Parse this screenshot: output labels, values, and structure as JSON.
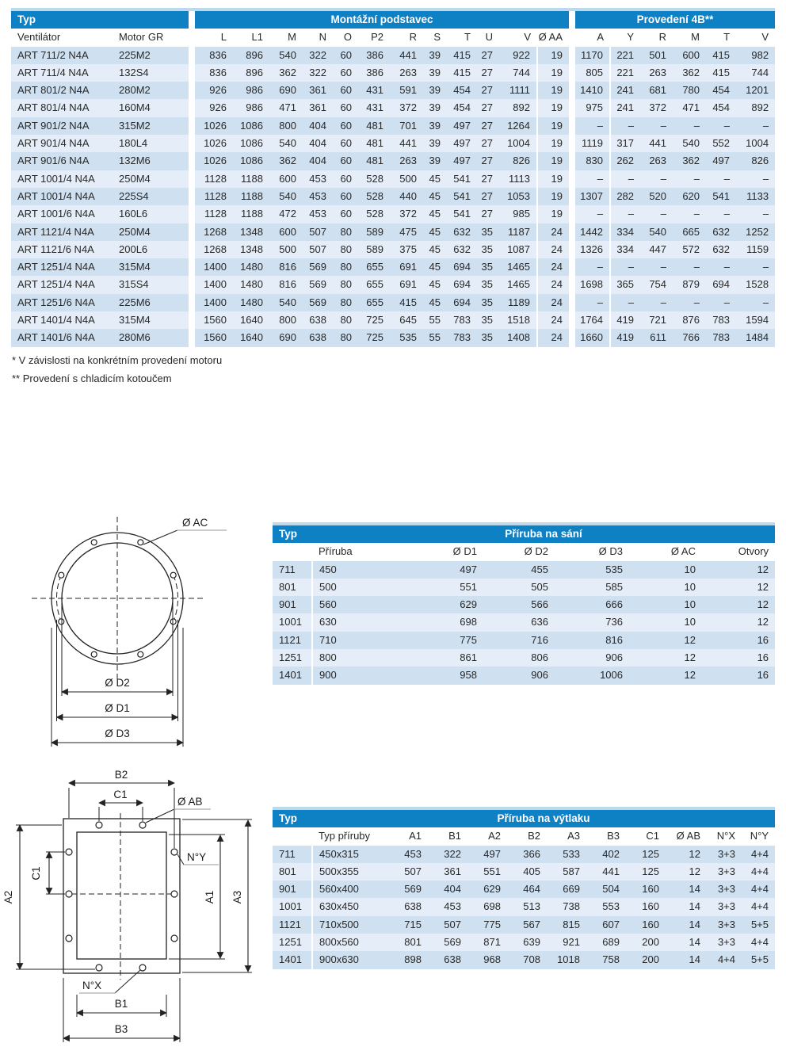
{
  "colors": {
    "header_blue": "#0e80c4",
    "row_dark": "#cfe0f1",
    "row_light": "#e5eef8",
    "top_rule": "#bdd9ee",
    "text": "#282828"
  },
  "main_table": {
    "band": {
      "typ": "Typ",
      "montazni": "Montážní podstavec",
      "provedeni": "Provedení 4B**"
    },
    "columns": [
      "Ventilátor",
      "Motor GR",
      "L",
      "L1",
      "M",
      "N",
      "O",
      "P2",
      "R",
      "S",
      "T",
      "U",
      "V",
      "Ø AA",
      "A",
      "Y",
      "R",
      "M",
      "T",
      "V"
    ],
    "rows": [
      [
        "ART 711/2 N4A",
        "225M2",
        "836",
        "896",
        "540",
        "322",
        "60",
        "386",
        "441",
        "39",
        "415",
        "27",
        "922",
        "19",
        "1170",
        "221",
        "501",
        "600",
        "415",
        "982"
      ],
      [
        "ART 711/4 N4A",
        "132S4",
        "836",
        "896",
        "362",
        "322",
        "60",
        "386",
        "263",
        "39",
        "415",
        "27",
        "744",
        "19",
        "805",
        "221",
        "263",
        "362",
        "415",
        "744"
      ],
      [
        "ART 801/2 N4A",
        "280M2",
        "926",
        "986",
        "690",
        "361",
        "60",
        "431",
        "591",
        "39",
        "454",
        "27",
        "1111",
        "19",
        "1410",
        "241",
        "681",
        "780",
        "454",
        "1201"
      ],
      [
        "ART 801/4 N4A",
        "160M4",
        "926",
        "986",
        "471",
        "361",
        "60",
        "431",
        "372",
        "39",
        "454",
        "27",
        "892",
        "19",
        "975",
        "241",
        "372",
        "471",
        "454",
        "892"
      ],
      [
        "ART 901/2 N4A",
        "315M2",
        "1026",
        "1086",
        "800",
        "404",
        "60",
        "481",
        "701",
        "39",
        "497",
        "27",
        "1264",
        "19",
        "–",
        "–",
        "–",
        "–",
        "–",
        "–"
      ],
      [
        "ART 901/4 N4A",
        "180L4",
        "1026",
        "1086",
        "540",
        "404",
        "60",
        "481",
        "441",
        "39",
        "497",
        "27",
        "1004",
        "19",
        "1119",
        "317",
        "441",
        "540",
        "552",
        "1004"
      ],
      [
        "ART 901/6 N4A",
        "132M6",
        "1026",
        "1086",
        "362",
        "404",
        "60",
        "481",
        "263",
        "39",
        "497",
        "27",
        "826",
        "19",
        "830",
        "262",
        "263",
        "362",
        "497",
        "826"
      ],
      [
        "ART 1001/4 N4A",
        "250M4",
        "1128",
        "1188",
        "600",
        "453",
        "60",
        "528",
        "500",
        "45",
        "541",
        "27",
        "1113",
        "19",
        "–",
        "–",
        "–",
        "–",
        "–",
        "–"
      ],
      [
        "ART 1001/4 N4A",
        "225S4",
        "1128",
        "1188",
        "540",
        "453",
        "60",
        "528",
        "440",
        "45",
        "541",
        "27",
        "1053",
        "19",
        "1307",
        "282",
        "520",
        "620",
        "541",
        "1133"
      ],
      [
        "ART 1001/6 N4A",
        "160L6",
        "1128",
        "1188",
        "472",
        "453",
        "60",
        "528",
        "372",
        "45",
        "541",
        "27",
        "985",
        "19",
        "–",
        "–",
        "–",
        "–",
        "–",
        "–"
      ],
      [
        "ART 1121/4 N4A",
        "250M4",
        "1268",
        "1348",
        "600",
        "507",
        "80",
        "589",
        "475",
        "45",
        "632",
        "35",
        "1187",
        "24",
        "1442",
        "334",
        "540",
        "665",
        "632",
        "1252"
      ],
      [
        "ART 1121/6 N4A",
        "200L6",
        "1268",
        "1348",
        "500",
        "507",
        "80",
        "589",
        "375",
        "45",
        "632",
        "35",
        "1087",
        "24",
        "1326",
        "334",
        "447",
        "572",
        "632",
        "1159"
      ],
      [
        "ART 1251/4 N4A",
        "315M4",
        "1400",
        "1480",
        "816",
        "569",
        "80",
        "655",
        "691",
        "45",
        "694",
        "35",
        "1465",
        "24",
        "–",
        "–",
        "–",
        "–",
        "–",
        "–"
      ],
      [
        "ART 1251/4 N4A",
        "315S4",
        "1400",
        "1480",
        "816",
        "569",
        "80",
        "655",
        "691",
        "45",
        "694",
        "35",
        "1465",
        "24",
        "1698",
        "365",
        "754",
        "879",
        "694",
        "1528"
      ],
      [
        "ART 1251/6 N4A",
        "225M6",
        "1400",
        "1480",
        "540",
        "569",
        "80",
        "655",
        "415",
        "45",
        "694",
        "35",
        "1189",
        "24",
        "–",
        "–",
        "–",
        "–",
        "–",
        "–"
      ],
      [
        "ART 1401/4 N4A",
        "315M4",
        "1560",
        "1640",
        "800",
        "638",
        "80",
        "725",
        "645",
        "55",
        "783",
        "35",
        "1518",
        "24",
        "1764",
        "419",
        "721",
        "876",
        "783",
        "1594"
      ],
      [
        "ART 1401/6 N4A",
        "280M6",
        "1560",
        "1640",
        "690",
        "638",
        "80",
        "725",
        "535",
        "55",
        "783",
        "35",
        "1408",
        "24",
        "1660",
        "419",
        "611",
        "766",
        "783",
        "1484"
      ]
    ]
  },
  "footnotes": {
    "line1": "* V závislosti na konkrétním provedení motoru",
    "line2": "** Provedení s chladicím kotoučem"
  },
  "suction_table": {
    "typ": "Typ",
    "title": "Příruba na sání",
    "columns": [
      "",
      "Příruba",
      "Ø D1",
      "Ø D2",
      "Ø D3",
      "Ø AC",
      "Otvory"
    ],
    "rows": [
      [
        "711",
        "450",
        "497",
        "455",
        "535",
        "10",
        "12"
      ],
      [
        "801",
        "500",
        "551",
        "505",
        "585",
        "10",
        "12"
      ],
      [
        "901",
        "560",
        "629",
        "566",
        "666",
        "10",
        "12"
      ],
      [
        "1001",
        "630",
        "698",
        "636",
        "736",
        "10",
        "12"
      ],
      [
        "1121",
        "710",
        "775",
        "716",
        "816",
        "12",
        "16"
      ],
      [
        "1251",
        "800",
        "861",
        "806",
        "906",
        "12",
        "16"
      ],
      [
        "1401",
        "900",
        "958",
        "906",
        "1006",
        "12",
        "16"
      ]
    ]
  },
  "discharge_table": {
    "typ": "Typ",
    "title": "Příruba na výtlaku",
    "columns": [
      "",
      "Typ příruby",
      "A1",
      "B1",
      "A2",
      "B2",
      "A3",
      "B3",
      "C1",
      "Ø AB",
      "N°X",
      "N°Y"
    ],
    "rows": [
      [
        "711",
        "450x315",
        "453",
        "322",
        "497",
        "366",
        "533",
        "402",
        "125",
        "12",
        "3+3",
        "4+4"
      ],
      [
        "801",
        "500x355",
        "507",
        "361",
        "551",
        "405",
        "587",
        "441",
        "125",
        "12",
        "3+3",
        "4+4"
      ],
      [
        "901",
        "560x400",
        "569",
        "404",
        "629",
        "464",
        "669",
        "504",
        "160",
        "14",
        "3+3",
        "4+4"
      ],
      [
        "1001",
        "630x450",
        "638",
        "453",
        "698",
        "513",
        "738",
        "553",
        "160",
        "14",
        "3+3",
        "4+4"
      ],
      [
        "1121",
        "710x500",
        "715",
        "507",
        "775",
        "567",
        "815",
        "607",
        "160",
        "14",
        "3+3",
        "5+5"
      ],
      [
        "1251",
        "800x560",
        "801",
        "569",
        "871",
        "639",
        "921",
        "689",
        "200",
        "14",
        "3+3",
        "4+4"
      ],
      [
        "1401",
        "900x630",
        "898",
        "638",
        "968",
        "708",
        "1018",
        "758",
        "200",
        "14",
        "4+4",
        "5+5"
      ]
    ]
  },
  "diagram_circle": {
    "ac": "Ø AC",
    "d2": "Ø D2",
    "d1": "Ø D1",
    "d3": "Ø D3"
  },
  "diagram_rect": {
    "b2": "B2",
    "c1_top": "C1",
    "ab": "Ø AB",
    "ny": "N°Y",
    "c1_left": "C1",
    "a2": "A2",
    "a1": "A1",
    "a3": "A3",
    "nx": "N°X",
    "b1": "B1",
    "b3": "B3"
  }
}
